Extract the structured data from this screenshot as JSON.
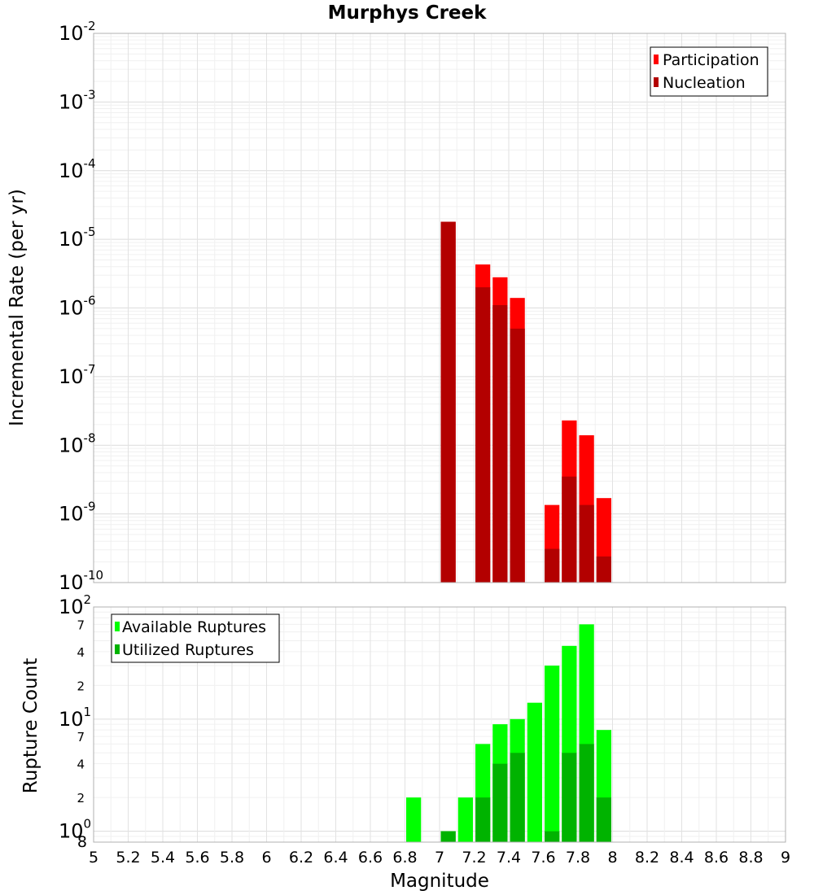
{
  "chart_data": [
    {
      "type": "bar",
      "title": "Murphys Creek",
      "ylabel": "Incremental Rate (per yr)",
      "yscale": "log",
      "ylim": [
        1e-10,
        0.01
      ],
      "xlim": [
        5,
        9
      ],
      "y_tick_labels": [
        {
          "base": "10",
          "exp": "-2"
        },
        {
          "base": "10",
          "exp": "-3"
        },
        {
          "base": "10",
          "exp": "-4"
        },
        {
          "base": "10",
          "exp": "-5"
        },
        {
          "base": "10",
          "exp": "-6"
        },
        {
          "base": "10",
          "exp": "-7"
        },
        {
          "base": "10",
          "exp": "-8"
        },
        {
          "base": "10",
          "exp": "-9"
        },
        {
          "base": "10",
          "exp": "-10"
        }
      ],
      "legend": "top-right",
      "series": [
        {
          "name": "Participation",
          "color": "#ff0000",
          "x": [
            7.05,
            7.25,
            7.35,
            7.45,
            7.65,
            7.75,
            7.85,
            7.95
          ],
          "values": [
            1.8e-05,
            4.3e-06,
            2.8e-06,
            1.4e-06,
            1.35e-09,
            2.3e-08,
            1.4e-08,
            1.7e-09
          ]
        },
        {
          "name": "Nucleation",
          "color": "#b30000",
          "x": [
            7.05,
            7.25,
            7.35,
            7.45,
            7.65,
            7.75,
            7.85,
            7.95
          ],
          "values": [
            1.8e-05,
            2e-06,
            1.1e-06,
            5e-07,
            3.1e-10,
            3.5e-09,
            1.35e-09,
            2.4e-10
          ]
        }
      ]
    },
    {
      "type": "bar",
      "xlabel": "Magnitude",
      "ylabel": "Rupture Count",
      "yscale": "log",
      "ylim": [
        0.8,
        100
      ],
      "x_tick_labels": [
        "5",
        "5.2",
        "5.4",
        "5.6",
        "5.8",
        "6",
        "6.2",
        "6.4",
        "6.6",
        "6.8",
        "7",
        "7.2",
        "7.4",
        "7.6",
        "7.8",
        "8",
        "8.2",
        "8.4",
        "8.6",
        "8.8",
        "9"
      ],
      "y_major_labels": [
        {
          "base": "10",
          "exp": "2"
        },
        {
          "base": "10",
          "exp": "1"
        },
        {
          "base": "10",
          "exp": "0"
        }
      ],
      "y_minor_labels": [
        "7",
        "4",
        "2",
        "7",
        "4",
        "2",
        "8"
      ],
      "legend": "top-left",
      "series": [
        {
          "name": "Available Ruptures",
          "color": "#00ff00",
          "x": [
            6.85,
            7.05,
            7.15,
            7.25,
            7.35,
            7.45,
            7.55,
            7.65,
            7.75,
            7.85,
            7.95
          ],
          "values": [
            2,
            1,
            2,
            6,
            9,
            10,
            14,
            30,
            45,
            70,
            8
          ]
        },
        {
          "name": "Utilized Ruptures",
          "color": "#00b300",
          "x": [
            7.05,
            7.25,
            7.35,
            7.45,
            7.65,
            7.75,
            7.85,
            7.95
          ],
          "values": [
            1,
            2,
            4,
            5,
            1,
            5,
            6,
            2
          ]
        }
      ]
    }
  ]
}
